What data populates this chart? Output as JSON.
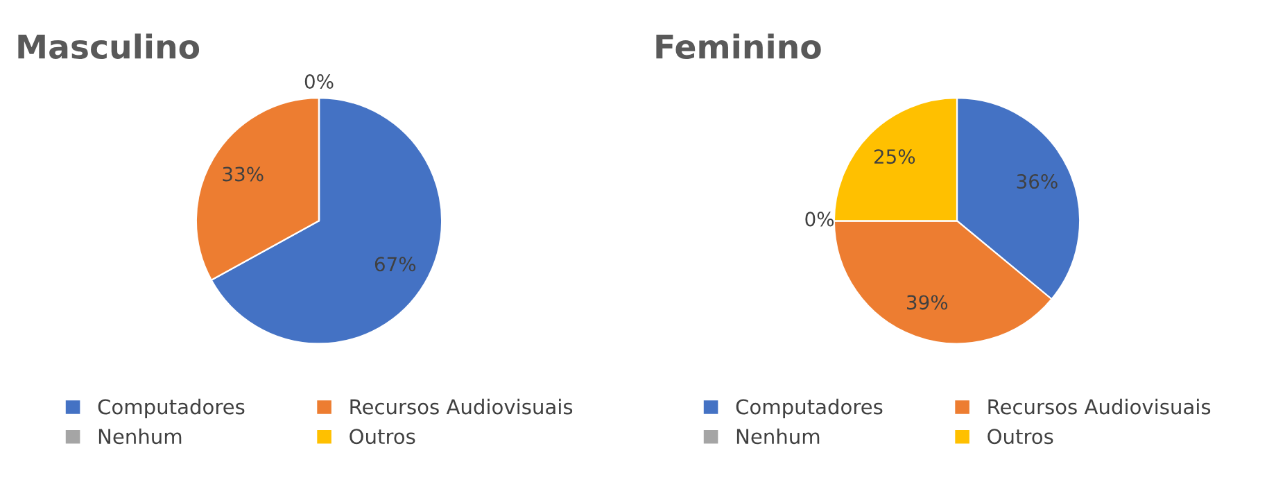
{
  "chart_data": [
    {
      "type": "pie",
      "title": "Masculino",
      "categories": [
        "Computadores",
        "Recursos Audiovisuais",
        "Nenhum",
        "Outros"
      ],
      "values": [
        67,
        33,
        0,
        0
      ],
      "colors": [
        "#4472c4",
        "#ed7d31",
        "#a5a5a5",
        "#ffc000"
      ],
      "value_labels": [
        "67%",
        "33%",
        null,
        "0%"
      ],
      "legend": "bottom"
    },
    {
      "type": "pie",
      "title": "Feminino",
      "categories": [
        "Computadores",
        "Recursos Audiovisuais",
        "Nenhum",
        "Outros"
      ],
      "values": [
        36,
        39,
        0,
        25
      ],
      "colors": [
        "#4472c4",
        "#ed7d31",
        "#a5a5a5",
        "#ffc000"
      ],
      "value_labels": [
        "36%",
        "39%",
        "0%",
        "25%"
      ],
      "legend": "bottom"
    }
  ]
}
